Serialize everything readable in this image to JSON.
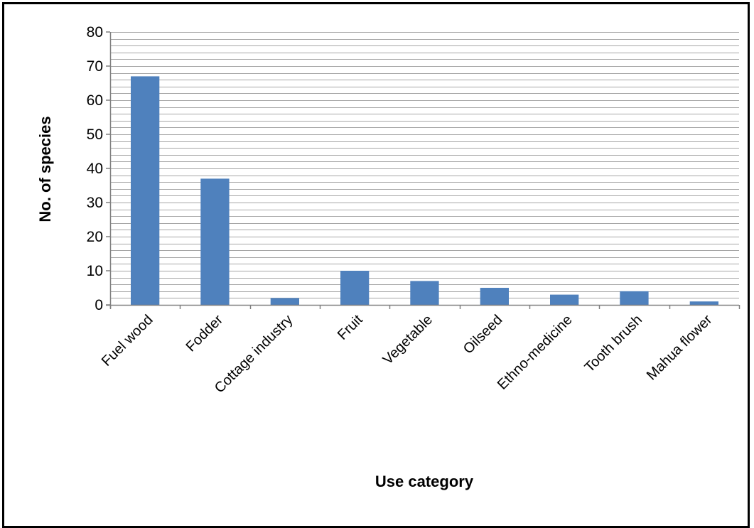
{
  "chart_data": {
    "type": "bar",
    "categories": [
      "Fuel wood",
      "Fodder",
      "Cottage industry",
      "Fruit",
      "Vegetable",
      "Oilseed",
      "Ethno-medicine",
      "Tooth brush",
      "Mahua flower"
    ],
    "values": [
      67,
      37,
      2,
      10,
      7,
      5,
      3,
      4,
      1
    ],
    "title": "",
    "xlabel": "Use category",
    "ylabel": "No. of species",
    "ylim": [
      0,
      80
    ],
    "y_ticks": [
      "0",
      "10",
      "20",
      "30",
      "40",
      "50",
      "60",
      "70",
      "80"
    ],
    "y_tick_values": [
      0,
      10,
      20,
      30,
      40,
      50,
      60,
      70,
      80
    ],
    "minor_gridline_step": 2,
    "grid": true,
    "legend": "none",
    "bar_color": "#4f81bd",
    "gridline_color": "#a6a6a6"
  }
}
